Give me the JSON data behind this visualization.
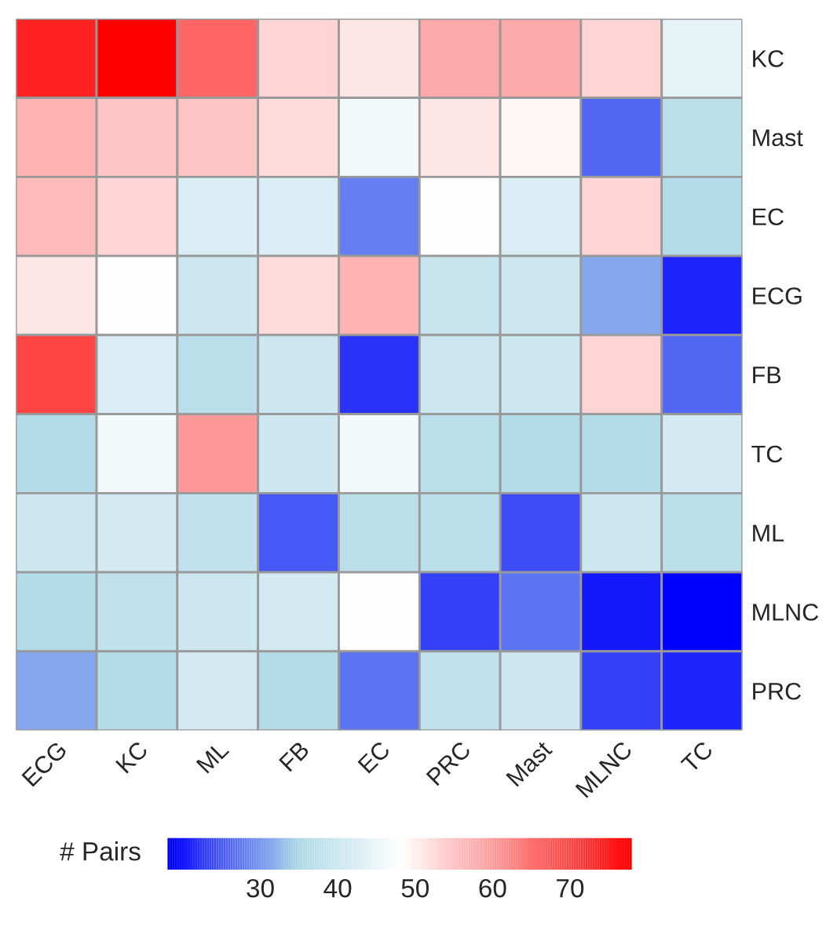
{
  "chart_data": {
    "type": "heatmap",
    "categories": [
      "ECG",
      "KC",
      "ML",
      "FB",
      "EC",
      "PRC",
      "Mast",
      "MLNC",
      "TC"
    ],
    "y_categories": [
      "KC",
      "Mast",
      "EC",
      "ECG",
      "FB",
      "TC",
      "ML",
      "MLNC",
      "PRC"
    ],
    "cells": [
      [
        74,
        78,
        66,
        53,
        51,
        58,
        58,
        53,
        44
      ],
      [
        57,
        55,
        55,
        52,
        46,
        51,
        49,
        26,
        37
      ],
      [
        56,
        53,
        42,
        42,
        28,
        48,
        42,
        53,
        36
      ],
      [
        51,
        48,
        40,
        52,
        57,
        39,
        40,
        31,
        21
      ],
      [
        70,
        42,
        37,
        40,
        22,
        40,
        40,
        53,
        26
      ],
      [
        36,
        46,
        60,
        40,
        46,
        37,
        36,
        36,
        41
      ],
      [
        40,
        41,
        38,
        25,
        37,
        37,
        24,
        40,
        37
      ],
      [
        36,
        38,
        40,
        41,
        48,
        23,
        27,
        20,
        18
      ],
      [
        31,
        36,
        41,
        36,
        27,
        38,
        40,
        23,
        21
      ]
    ],
    "clabel": "# Pairs",
    "clim": [
      18,
      78
    ],
    "cticks": [
      30,
      40,
      50,
      60,
      70
    ]
  }
}
